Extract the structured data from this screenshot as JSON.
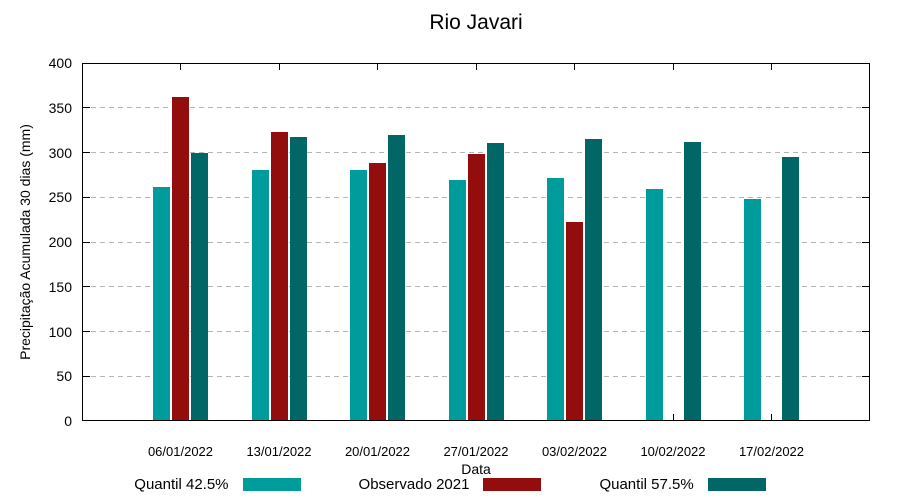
{
  "title": "Rio Javari",
  "chart_data": {
    "type": "bar",
    "title": "Rio Javari",
    "xlabel": "Data",
    "ylabel": "Precipitação Acumulada 30 dias (mm)",
    "ylim": [
      0,
      400
    ],
    "ytick_step": 50,
    "grid": true,
    "legend_position": "bottom",
    "categories": [
      "06/01/2022",
      "13/01/2022",
      "20/01/2022",
      "27/01/2022",
      "03/02/2022",
      "10/02/2022",
      "17/02/2022"
    ],
    "series": [
      {
        "name": "Quantil 42.5%",
        "color": "#009c9c",
        "values": [
          261,
          280,
          281,
          269,
          271,
          259,
          248
        ]
      },
      {
        "name": "Observado 2021",
        "color": "#940d0d",
        "values": [
          362,
          323,
          288,
          298,
          222,
          null,
          null
        ]
      },
      {
        "name": "Quantil 57.5%",
        "color": "#006666",
        "values": [
          300,
          317,
          320,
          311,
          315,
          312,
          295
        ]
      }
    ],
    "colors": {
      "axis": "#000000",
      "grid": "#b6b6b6",
      "background": "#ffffff"
    }
  }
}
